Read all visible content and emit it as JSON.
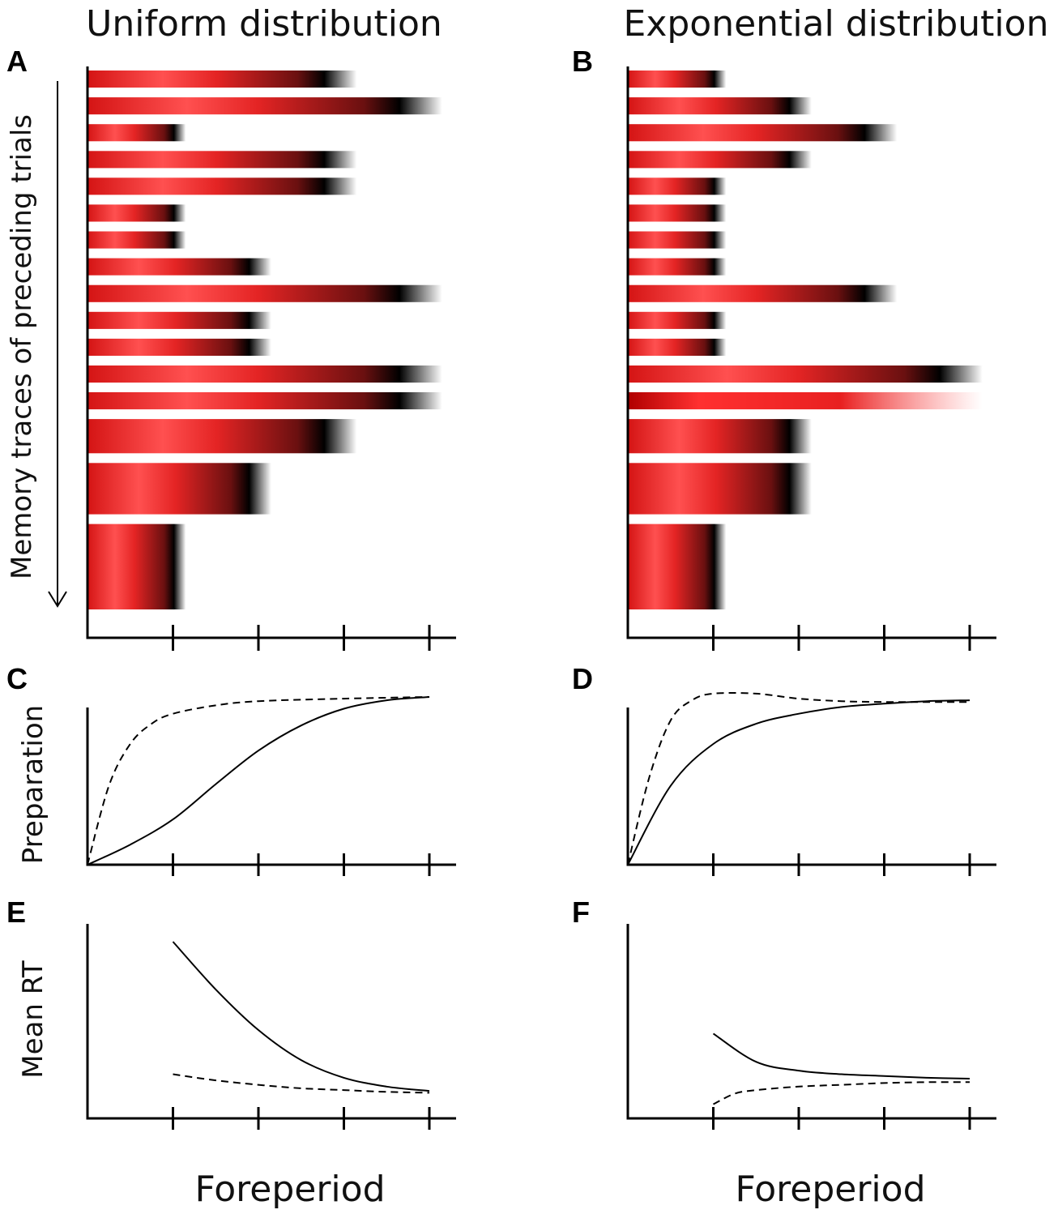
{
  "figure": {
    "title_left": "Uniform distribution",
    "title_right": "Exponential distribution",
    "panel_labels": [
      "A",
      "B",
      "C",
      "D",
      "E",
      "F"
    ],
    "trace_axis_label": "Memory traces of preceding trials",
    "xlabel": "Foreperiod"
  },
  "colors": {
    "trace_red": "#e01818",
    "trace_peak": "#ff4d4d",
    "trace_end": "#000000",
    "axis": "#000000"
  },
  "chart_data": [
    {
      "panel": "A",
      "type": "bar",
      "title": "Uniform distribution",
      "ylabel": "Memory traces of preceding trials",
      "xlabel": "",
      "xlim": [
        0,
        4.3
      ],
      "x_ticks": [
        1,
        2,
        3,
        4
      ],
      "y_direction": "older to more recent trials (top to bottom)",
      "traces": [
        {
          "foreperiod": 3,
          "weight": 1
        },
        {
          "foreperiod": 4,
          "weight": 1
        },
        {
          "foreperiod": 1,
          "weight": 1
        },
        {
          "foreperiod": 3,
          "weight": 1
        },
        {
          "foreperiod": 3,
          "weight": 1
        },
        {
          "foreperiod": 1,
          "weight": 1
        },
        {
          "foreperiod": 1,
          "weight": 1
        },
        {
          "foreperiod": 2,
          "weight": 1
        },
        {
          "foreperiod": 4,
          "weight": 1
        },
        {
          "foreperiod": 2,
          "weight": 1
        },
        {
          "foreperiod": 2,
          "weight": 1
        },
        {
          "foreperiod": 4,
          "weight": 1
        },
        {
          "foreperiod": 4,
          "weight": 1
        },
        {
          "foreperiod": 3,
          "weight": 2
        },
        {
          "foreperiod": 2,
          "weight": 3
        },
        {
          "foreperiod": 1,
          "weight": 5
        }
      ]
    },
    {
      "panel": "B",
      "type": "bar",
      "title": "Exponential distribution",
      "xlabel": "",
      "xlim": [
        0,
        4.3
      ],
      "x_ticks": [
        1,
        2,
        3,
        4
      ],
      "traces": [
        {
          "foreperiod": 1,
          "weight": 1
        },
        {
          "foreperiod": 2,
          "weight": 1
        },
        {
          "foreperiod": 3,
          "weight": 1
        },
        {
          "foreperiod": 2,
          "weight": 1
        },
        {
          "foreperiod": 1,
          "weight": 1
        },
        {
          "foreperiod": 1,
          "weight": 1
        },
        {
          "foreperiod": 1,
          "weight": 1
        },
        {
          "foreperiod": 1,
          "weight": 1
        },
        {
          "foreperiod": 3,
          "weight": 1
        },
        {
          "foreperiod": 1,
          "weight": 1
        },
        {
          "foreperiod": 1,
          "weight": 1
        },
        {
          "foreperiod": 4,
          "weight": 1
        },
        {
          "foreperiod": 4,
          "weight": 1,
          "style": "fading"
        },
        {
          "foreperiod": 2,
          "weight": 2
        },
        {
          "foreperiod": 2,
          "weight": 3
        },
        {
          "foreperiod": 1,
          "weight": 5
        }
      ]
    },
    {
      "panel": "C",
      "type": "line",
      "ylabel": "Preparation",
      "xlim": [
        0,
        4.3
      ],
      "ylim": [
        0,
        1.05
      ],
      "x_ticks": [
        1,
        2,
        3,
        4
      ],
      "series": [
        {
          "name": "solid",
          "style": "solid",
          "x": [
            0,
            0.5,
            1,
            1.5,
            2,
            2.5,
            3,
            3.5,
            4
          ],
          "y": [
            0,
            0.12,
            0.27,
            0.48,
            0.68,
            0.83,
            0.93,
            0.98,
            1.0
          ]
        },
        {
          "name": "dashed",
          "style": "dashed",
          "x": [
            0,
            0.25,
            0.5,
            0.75,
            1,
            1.5,
            2,
            3,
            4
          ],
          "y": [
            0,
            0.47,
            0.72,
            0.84,
            0.9,
            0.95,
            0.975,
            0.99,
            1.0
          ]
        }
      ]
    },
    {
      "panel": "D",
      "type": "line",
      "xlim": [
        0,
        4.3
      ],
      "ylim": [
        0,
        1.05
      ],
      "x_ticks": [
        1,
        2,
        3,
        4
      ],
      "series": [
        {
          "name": "solid",
          "style": "solid",
          "x": [
            0,
            0.5,
            1,
            1.5,
            2,
            2.5,
            3,
            3.5,
            4
          ],
          "y": [
            0,
            0.47,
            0.72,
            0.84,
            0.9,
            0.94,
            0.96,
            0.975,
            0.98
          ]
        },
        {
          "name": "dashed",
          "style": "dashed",
          "x": [
            0,
            0.25,
            0.5,
            0.75,
            1,
            1.5,
            2,
            2.5,
            3,
            4
          ],
          "y": [
            0,
            0.52,
            0.86,
            0.98,
            1.02,
            1.02,
            0.99,
            0.975,
            0.97,
            0.97
          ]
        }
      ]
    },
    {
      "panel": "E",
      "type": "line",
      "ylabel": "Mean RT",
      "xlim": [
        0,
        4.3
      ],
      "ylim": [
        0,
        1.05
      ],
      "x_ticks": [
        1,
        2,
        3,
        4
      ],
      "series": [
        {
          "name": "solid",
          "style": "solid",
          "x": [
            1,
            1.5,
            2,
            2.5,
            3,
            3.5,
            4
          ],
          "y": [
            1.0,
            0.73,
            0.5,
            0.33,
            0.23,
            0.18,
            0.155
          ]
        },
        {
          "name": "dashed",
          "style": "dashed",
          "x": [
            1,
            1.5,
            2,
            2.5,
            3,
            3.5,
            4
          ],
          "y": [
            0.25,
            0.215,
            0.19,
            0.17,
            0.16,
            0.15,
            0.145
          ]
        }
      ]
    },
    {
      "panel": "F",
      "type": "line",
      "xlim": [
        0,
        4.3
      ],
      "ylim": [
        0,
        1.05
      ],
      "x_ticks": [
        1,
        2,
        3,
        4
      ],
      "series": [
        {
          "name": "solid",
          "style": "solid",
          "x": [
            1,
            1.5,
            2,
            2.5,
            3,
            3.5,
            4
          ],
          "y": [
            0.48,
            0.32,
            0.27,
            0.25,
            0.24,
            0.23,
            0.225
          ]
        },
        {
          "name": "dashed",
          "style": "dashed",
          "x": [
            1,
            1.25,
            1.5,
            2,
            2.5,
            3,
            3.5,
            4
          ],
          "y": [
            0.08,
            0.14,
            0.16,
            0.18,
            0.19,
            0.2,
            0.205,
            0.205
          ]
        }
      ]
    }
  ]
}
